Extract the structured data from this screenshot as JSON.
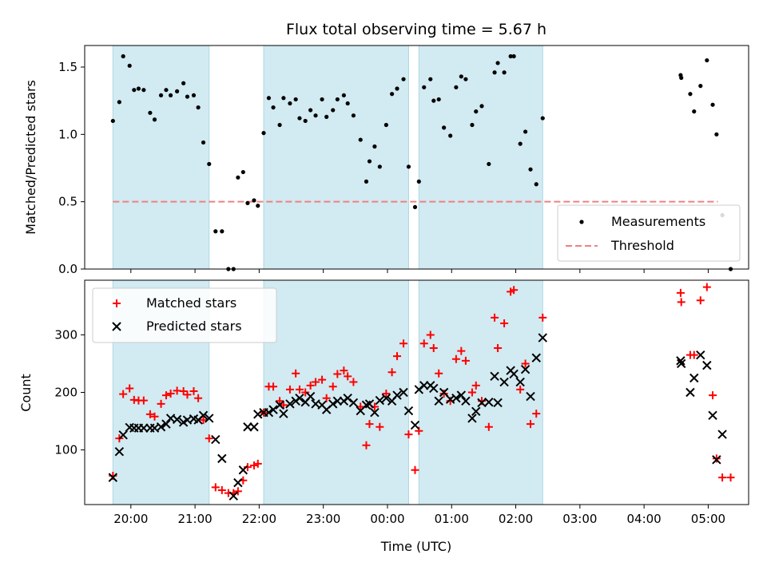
{
  "chart_data": {
    "title": "Flux total observing time = 5.67 h",
    "xlabel": "Time (UTC)",
    "x_ticks": [
      "20:00",
      "21:00",
      "22:00",
      "23:00",
      "00:00",
      "01:00",
      "02:00",
      "03:00",
      "04:00",
      "05:00"
    ],
    "x_tick_hours": [
      20,
      21,
      22,
      23,
      24,
      25,
      26,
      27,
      28,
      29
    ],
    "xlim_hours": [
      19.28,
      29.63
    ],
    "shaded_intervals_hours": [
      [
        19.72,
        21.22
      ],
      [
        22.07,
        24.33
      ],
      [
        24.49,
        26.42
      ]
    ],
    "colors": {
      "shade": "#add8e6",
      "matched": "#ff0000",
      "predicted": "#000000",
      "threshold": "#f08080",
      "measurement": "#000000"
    },
    "top": {
      "type": "scatter",
      "ylabel": "Matched/Predicted stars",
      "ylim": [
        0,
        1.66
      ],
      "y_ticks": [
        "0.0",
        "0.5",
        "1.0",
        "1.5"
      ],
      "y_tick_values": [
        0,
        0.5,
        1.0,
        1.5
      ],
      "threshold": 0.5,
      "threshold_range_hours": [
        19.72,
        29.15
      ],
      "legend": {
        "placement": "bottom-right",
        "entries": [
          "Measurements",
          "Threshold"
        ]
      },
      "points": [
        [
          19.72,
          1.1
        ],
        [
          19.82,
          1.24
        ],
        [
          19.88,
          1.58
        ],
        [
          19.98,
          1.51
        ],
        [
          20.05,
          1.33
        ],
        [
          20.12,
          1.34
        ],
        [
          20.2,
          1.33
        ],
        [
          20.3,
          1.16
        ],
        [
          20.37,
          1.11
        ],
        [
          20.47,
          1.29
        ],
        [
          20.55,
          1.33
        ],
        [
          20.62,
          1.29
        ],
        [
          20.72,
          1.32
        ],
        [
          20.82,
          1.38
        ],
        [
          20.88,
          1.28
        ],
        [
          20.98,
          1.29
        ],
        [
          21.05,
          1.2
        ],
        [
          21.13,
          0.94
        ],
        [
          21.22,
          0.78
        ],
        [
          21.32,
          0.28
        ],
        [
          21.42,
          0.28
        ],
        [
          21.52,
          0.0
        ],
        [
          21.6,
          0.0
        ],
        [
          21.67,
          0.68
        ],
        [
          21.75,
          0.72
        ],
        [
          21.82,
          0.49
        ],
        [
          21.92,
          0.51
        ],
        [
          21.98,
          0.47
        ],
        [
          22.07,
          1.01
        ],
        [
          22.15,
          1.27
        ],
        [
          22.22,
          1.2
        ],
        [
          22.32,
          1.07
        ],
        [
          22.38,
          1.27
        ],
        [
          22.48,
          1.23
        ],
        [
          22.57,
          1.26
        ],
        [
          22.63,
          1.12
        ],
        [
          22.72,
          1.1
        ],
        [
          22.8,
          1.18
        ],
        [
          22.88,
          1.14
        ],
        [
          22.98,
          1.26
        ],
        [
          23.05,
          1.13
        ],
        [
          23.15,
          1.18
        ],
        [
          23.22,
          1.26
        ],
        [
          23.32,
          1.29
        ],
        [
          23.38,
          1.23
        ],
        [
          23.47,
          1.14
        ],
        [
          23.58,
          0.96
        ],
        [
          23.67,
          0.65
        ],
        [
          23.72,
          0.8
        ],
        [
          23.8,
          0.91
        ],
        [
          23.88,
          0.76
        ],
        [
          23.98,
          1.07
        ],
        [
          24.07,
          1.3
        ],
        [
          24.15,
          1.34
        ],
        [
          24.25,
          1.41
        ],
        [
          24.33,
          0.76
        ],
        [
          24.43,
          0.46
        ],
        [
          24.49,
          0.65
        ],
        [
          24.57,
          1.35
        ],
        [
          24.67,
          1.41
        ],
        [
          24.72,
          1.25
        ],
        [
          24.8,
          1.26
        ],
        [
          24.88,
          1.05
        ],
        [
          24.98,
          0.99
        ],
        [
          25.07,
          1.35
        ],
        [
          25.15,
          1.43
        ],
        [
          25.22,
          1.41
        ],
        [
          25.32,
          1.07
        ],
        [
          25.38,
          1.17
        ],
        [
          25.47,
          1.21
        ],
        [
          25.58,
          0.78
        ],
        [
          25.67,
          1.46
        ],
        [
          25.72,
          1.53
        ],
        [
          25.82,
          1.46
        ],
        [
          25.92,
          1.58
        ],
        [
          25.97,
          1.58
        ],
        [
          26.07,
          0.93
        ],
        [
          26.15,
          1.02
        ],
        [
          26.23,
          0.74
        ],
        [
          26.32,
          0.63
        ],
        [
          26.42,
          1.12
        ],
        [
          28.57,
          1.44
        ],
        [
          28.58,
          1.42
        ],
        [
          28.72,
          1.3
        ],
        [
          28.78,
          1.17
        ],
        [
          28.88,
          1.36
        ],
        [
          28.98,
          1.55
        ],
        [
          29.07,
          1.22
        ],
        [
          29.13,
          1.0
        ],
        [
          29.22,
          0.4
        ],
        [
          29.35,
          0.0
        ]
      ]
    },
    "bottom": {
      "type": "scatter",
      "ylabel": "Count",
      "ylim": [
        5,
        395
      ],
      "y_ticks": [
        "100",
        "200",
        "300"
      ],
      "y_tick_values": [
        100,
        200,
        300
      ],
      "legend": {
        "placement": "top-left",
        "entries": [
          "Matched stars",
          "Predicted stars"
        ]
      },
      "series": [
        {
          "name": "Matched stars",
          "marker": "+",
          "points": [
            [
              19.72,
              55
            ],
            [
              19.82,
              120
            ],
            [
              19.88,
              197
            ],
            [
              19.98,
              207
            ],
            [
              20.05,
              187
            ],
            [
              20.12,
              186
            ],
            [
              20.2,
              186
            ],
            [
              20.3,
              162
            ],
            [
              20.37,
              158
            ],
            [
              20.47,
              180
            ],
            [
              20.55,
              195
            ],
            [
              20.62,
              198
            ],
            [
              20.72,
              203
            ],
            [
              20.82,
              202
            ],
            [
              20.88,
              196
            ],
            [
              20.98,
              202
            ],
            [
              21.05,
              190
            ],
            [
              21.13,
              152
            ],
            [
              21.22,
              120
            ],
            [
              21.32,
              35
            ],
            [
              21.42,
              30
            ],
            [
              21.52,
              25
            ],
            [
              21.6,
              25
            ],
            [
              21.67,
              28
            ],
            [
              21.75,
              47
            ],
            [
              21.82,
              70
            ],
            [
              21.92,
              73
            ],
            [
              21.98,
              76
            ],
            [
              22.07,
              165
            ],
            [
              22.15,
              210
            ],
            [
              22.22,
              210
            ],
            [
              22.32,
              185
            ],
            [
              22.38,
              178
            ],
            [
              22.48,
              205
            ],
            [
              22.57,
              233
            ],
            [
              22.63,
              205
            ],
            [
              22.72,
              200
            ],
            [
              22.8,
              212
            ],
            [
              22.88,
              218
            ],
            [
              22.98,
              222
            ],
            [
              23.05,
              190
            ],
            [
              23.15,
              210
            ],
            [
              23.22,
              232
            ],
            [
              23.32,
              238
            ],
            [
              23.38,
              228
            ],
            [
              23.47,
              218
            ],
            [
              23.58,
              175
            ],
            [
              23.67,
              108
            ],
            [
              23.72,
              145
            ],
            [
              23.8,
              175
            ],
            [
              23.88,
              140
            ],
            [
              23.98,
              198
            ],
            [
              24.07,
              235
            ],
            [
              24.15,
              263
            ],
            [
              24.25,
              285
            ],
            [
              24.33,
              127
            ],
            [
              24.43,
              65
            ],
            [
              24.49,
              133
            ],
            [
              24.57,
              285
            ],
            [
              24.67,
              300
            ],
            [
              24.72,
              277
            ],
            [
              24.8,
              233
            ],
            [
              24.88,
              198
            ],
            [
              24.98,
              185
            ],
            [
              25.07,
              258
            ],
            [
              25.15,
              272
            ],
            [
              25.22,
              255
            ],
            [
              25.32,
              200
            ],
            [
              25.38,
              212
            ],
            [
              25.47,
              185
            ],
            [
              25.58,
              140
            ],
            [
              25.67,
              330
            ],
            [
              25.72,
              277
            ],
            [
              25.82,
              320
            ],
            [
              25.92,
              375
            ],
            [
              25.97,
              378
            ],
            [
              26.07,
              205
            ],
            [
              26.15,
              250
            ],
            [
              26.23,
              145
            ],
            [
              26.32,
              163
            ],
            [
              26.42,
              330
            ],
            [
              28.57,
              373
            ],
            [
              28.58,
              357
            ],
            [
              28.72,
              265
            ],
            [
              28.78,
              265
            ],
            [
              28.88,
              360
            ],
            [
              28.98,
              383
            ],
            [
              29.07,
              195
            ],
            [
              29.13,
              85
            ],
            [
              29.22,
              52
            ],
            [
              29.35,
              52
            ]
          ]
        },
        {
          "name": "Predicted stars",
          "marker": "x",
          "points": [
            [
              19.72,
              52
            ],
            [
              19.82,
              97
            ],
            [
              19.88,
              126
            ],
            [
              19.98,
              139
            ],
            [
              20.05,
              138
            ],
            [
              20.12,
              138
            ],
            [
              20.2,
              138
            ],
            [
              20.3,
              138
            ],
            [
              20.37,
              138
            ],
            [
              20.47,
              140
            ],
            [
              20.55,
              145
            ],
            [
              20.62,
              155
            ],
            [
              20.72,
              153
            ],
            [
              20.82,
              148
            ],
            [
              20.88,
              152
            ],
            [
              20.98,
              154
            ],
            [
              21.05,
              152
            ],
            [
              21.13,
              160
            ],
            [
              21.22,
              155
            ],
            [
              21.32,
              118
            ],
            [
              21.42,
              85
            ],
            [
              21.6,
              20
            ],
            [
              21.67,
              43
            ],
            [
              21.75,
              65
            ],
            [
              21.82,
              140
            ],
            [
              21.92,
              140
            ],
            [
              21.98,
              162
            ],
            [
              22.07,
              165
            ],
            [
              22.15,
              165
            ],
            [
              22.22,
              170
            ],
            [
              22.32,
              178
            ],
            [
              22.38,
              163
            ],
            [
              22.48,
              180
            ],
            [
              22.57,
              185
            ],
            [
              22.63,
              190
            ],
            [
              22.72,
              183
            ],
            [
              22.8,
              193
            ],
            [
              22.88,
              180
            ],
            [
              22.98,
              178
            ],
            [
              23.05,
              170
            ],
            [
              23.15,
              180
            ],
            [
              23.22,
              185
            ],
            [
              23.32,
              185
            ],
            [
              23.38,
              190
            ],
            [
              23.47,
              182
            ],
            [
              23.58,
              168
            ],
            [
              23.67,
              178
            ],
            [
              23.72,
              180
            ],
            [
              23.8,
              165
            ],
            [
              23.88,
              186
            ],
            [
              23.98,
              190
            ],
            [
              24.07,
              185
            ],
            [
              24.15,
              195
            ],
            [
              24.25,
              200
            ],
            [
              24.33,
              168
            ],
            [
              24.43,
              143
            ],
            [
              24.49,
              205
            ],
            [
              24.57,
              212
            ],
            [
              24.67,
              212
            ],
            [
              24.72,
              207
            ],
            [
              24.8,
              185
            ],
            [
              24.88,
              200
            ],
            [
              24.98,
              188
            ],
            [
              25.07,
              190
            ],
            [
              25.15,
              195
            ],
            [
              25.22,
              185
            ],
            [
              25.32,
              155
            ],
            [
              25.38,
              167
            ],
            [
              25.47,
              182
            ],
            [
              25.58,
              183
            ],
            [
              25.67,
              228
            ],
            [
              25.72,
              182
            ],
            [
              25.82,
              218
            ],
            [
              25.92,
              238
            ],
            [
              25.97,
              232
            ],
            [
              26.07,
              218
            ],
            [
              26.15,
              240
            ],
            [
              26.23,
              193
            ],
            [
              26.32,
              260
            ],
            [
              26.42,
              295
            ],
            [
              28.57,
              255
            ],
            [
              28.58,
              250
            ],
            [
              28.72,
              200
            ],
            [
              28.78,
              225
            ],
            [
              28.88,
              265
            ],
            [
              28.98,
              247
            ],
            [
              29.07,
              160
            ],
            [
              29.13,
              83
            ],
            [
              29.22,
              127
            ]
          ]
        }
      ]
    }
  }
}
